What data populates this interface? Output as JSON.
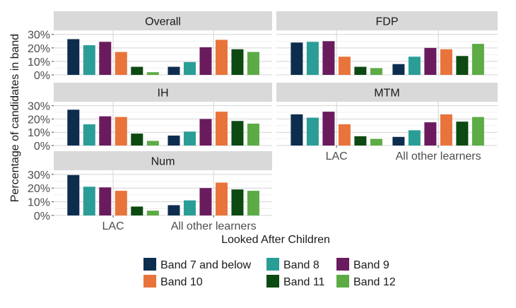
{
  "chart_data": {
    "type": "bar",
    "xlabel": "Looked After Children",
    "ylabel": "Percentage of candidates in band",
    "categories": [
      "LAC",
      "All other learners"
    ],
    "y_ticks": [
      "0%",
      "10%",
      "20%",
      "30%"
    ],
    "ylim": [
      0,
      33
    ],
    "legend_position": "bottom",
    "series": [
      {
        "name": "Band 7 and below",
        "color": "#0d2d4f"
      },
      {
        "name": "Band 8",
        "color": "#2a9d97"
      },
      {
        "name": "Band 9",
        "color": "#6a1b5e"
      },
      {
        "name": "Band 10",
        "color": "#e8743b"
      },
      {
        "name": "Band 11",
        "color": "#0d4a12"
      },
      {
        "name": "Band 12",
        "color": "#5cab45"
      }
    ],
    "panels": [
      {
        "title": "Overall",
        "values": [
          [
            26.5,
            22,
            24.5,
            17,
            6,
            2
          ],
          [
            6,
            9.5,
            20.5,
            26,
            19,
            17
          ]
        ]
      },
      {
        "title": "FDP",
        "values": [
          [
            24,
            24.5,
            25,
            13.5,
            6,
            5
          ],
          [
            8,
            13.5,
            20,
            19,
            14,
            23
          ]
        ]
      },
      {
        "title": "IH",
        "values": [
          [
            27,
            16,
            22,
            21.5,
            9,
            3.5
          ],
          [
            7.5,
            10.5,
            20,
            25.5,
            18.5,
            16.5
          ]
        ]
      },
      {
        "title": "MTM",
        "values": [
          [
            23.5,
            21,
            25.5,
            16,
            7,
            5
          ],
          [
            6.5,
            11.5,
            17.5,
            23.5,
            18,
            21.5
          ]
        ]
      },
      {
        "title": "Num",
        "values": [
          [
            29.5,
            21,
            20.5,
            18,
            6.5,
            3.5
          ],
          [
            7.5,
            11,
            20,
            24,
            19,
            18
          ]
        ]
      }
    ]
  }
}
